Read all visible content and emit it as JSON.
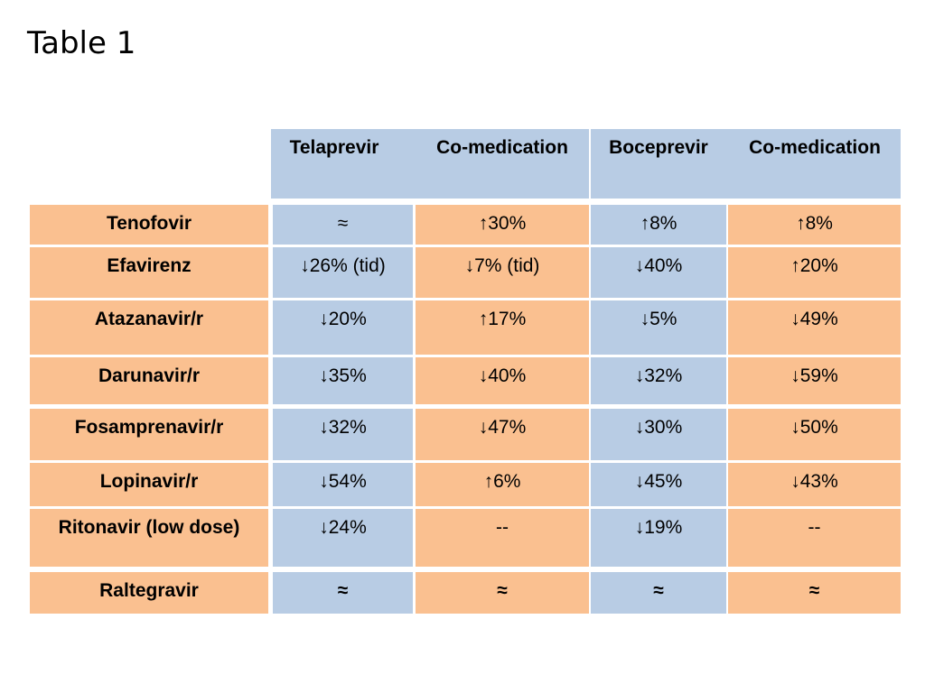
{
  "title": "Table 1",
  "table": {
    "headers": [
      "Telaprevir",
      "Co-medication",
      "Boceprevir",
      "Co-medication"
    ],
    "rows": [
      {
        "drug": "Tenofovir",
        "cells": [
          "≈",
          "↑30%",
          "↑8%",
          "↑8%"
        ]
      },
      {
        "drug": "Efavirenz",
        "cells": [
          "↓26% (tid)",
          "↓7% (tid)",
          "↓40%",
          "↑20%"
        ]
      },
      {
        "drug": "Atazanavir/r",
        "cells": [
          "↓20%",
          "↑17%",
          "↓5%",
          "↓49%"
        ]
      },
      {
        "drug": "Darunavir/r",
        "cells": [
          "↓35%",
          "↓40%",
          "↓32%",
          "↓59%"
        ]
      },
      {
        "drug": "Fosamprenavir/r",
        "cells": [
          "↓32%",
          "↓47%",
          "↓30%",
          "↓50%"
        ]
      },
      {
        "drug": "Lopinavir/r",
        "cells": [
          "↓54%",
          "↑6%",
          "↓45%",
          "↓43%"
        ]
      },
      {
        "drug": "Ritonavir (low dose)",
        "cells": [
          "↓24%",
          "--",
          "↓19%",
          "--"
        ]
      },
      {
        "drug": "Raltegravir",
        "cells": [
          "≈",
          "≈",
          "≈",
          "≈"
        ]
      }
    ]
  },
  "colors": {
    "blue": "#b8cce4",
    "orange": "#fac090"
  }
}
